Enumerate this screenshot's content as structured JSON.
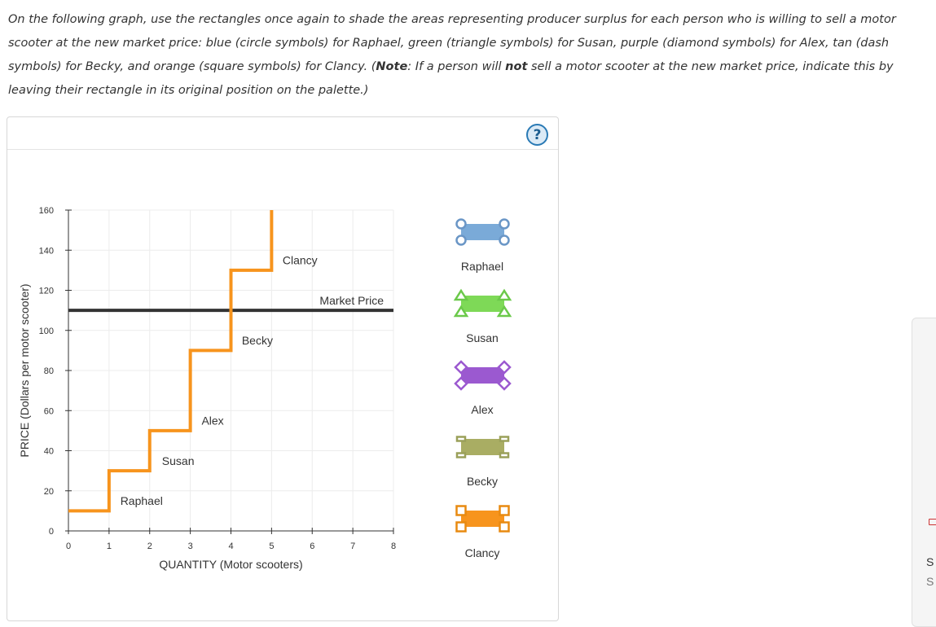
{
  "instructions": {
    "p1": "On the following graph, use the rectangles once again to shade the areas representing producer surplus for each person who is willing to sell a motor",
    "p2": "scooter at the new market price: blue (circle symbols) for Raphael, green (triangle symbols) for Susan, purple (diamond symbols) for Alex, tan (dash",
    "p3a": "symbols) for Becky, and orange (square symbols) for Clancy. (",
    "p3_note": "Note",
    "p3b": ": If a person will ",
    "p3_not": "not",
    "p3c": " sell a motor scooter at the new market price, indicate this by",
    "p4": "leaving their rectangle in its original position on the palette.)"
  },
  "help_label": "?",
  "chart_data": {
    "type": "line",
    "xlabel": "QUANTITY (Motor scooters)",
    "ylabel": "PRICE (Dollars per motor scooter)",
    "xlim": [
      0,
      8
    ],
    "ylim": [
      0,
      160
    ],
    "x_ticks": [
      0,
      1,
      2,
      3,
      4,
      5,
      6,
      7,
      8
    ],
    "y_ticks": [
      0,
      20,
      40,
      60,
      80,
      100,
      120,
      140,
      160
    ],
    "grid": true,
    "supply_curve": {
      "color": "#f7941d",
      "points": [
        [
          0,
          10
        ],
        [
          1,
          10
        ],
        [
          1,
          30
        ],
        [
          2,
          30
        ],
        [
          2,
          50
        ],
        [
          3,
          50
        ],
        [
          3,
          90
        ],
        [
          4,
          90
        ],
        [
          4,
          130
        ],
        [
          5,
          130
        ],
        [
          5,
          160
        ]
      ]
    },
    "market_price": {
      "label": "Market Price",
      "value": 110,
      "color": "#333333"
    },
    "step_labels": [
      {
        "text": "Raphael",
        "x": 1.8,
        "y": 15
      },
      {
        "text": "Susan",
        "x": 2.7,
        "y": 35
      },
      {
        "text": "Alex",
        "x": 3.55,
        "y": 55
      },
      {
        "text": "Becky",
        "x": 4.65,
        "y": 95
      },
      {
        "text": "Clancy",
        "x": 5.7,
        "y": 135
      }
    ]
  },
  "palette": [
    {
      "name": "Raphael",
      "color": "#7aaad8",
      "handle_color": "#6a96c6",
      "symbol": "circle"
    },
    {
      "name": "Susan",
      "color": "#7ed957",
      "handle_color": "#6bc94a",
      "symbol": "triangle"
    },
    {
      "name": "Alex",
      "color": "#9b59d0",
      "handle_color": "#9b59d0",
      "symbol": "diamond"
    },
    {
      "name": "Becky",
      "color": "#a9ad63",
      "handle_color": "#9aa05a",
      "symbol": "dash"
    },
    {
      "name": "Clancy",
      "color": "#f7941d",
      "handle_color": "#e88a10",
      "symbol": "square"
    }
  ],
  "side_panel": {
    "line1": "S",
    "line2": "S"
  }
}
